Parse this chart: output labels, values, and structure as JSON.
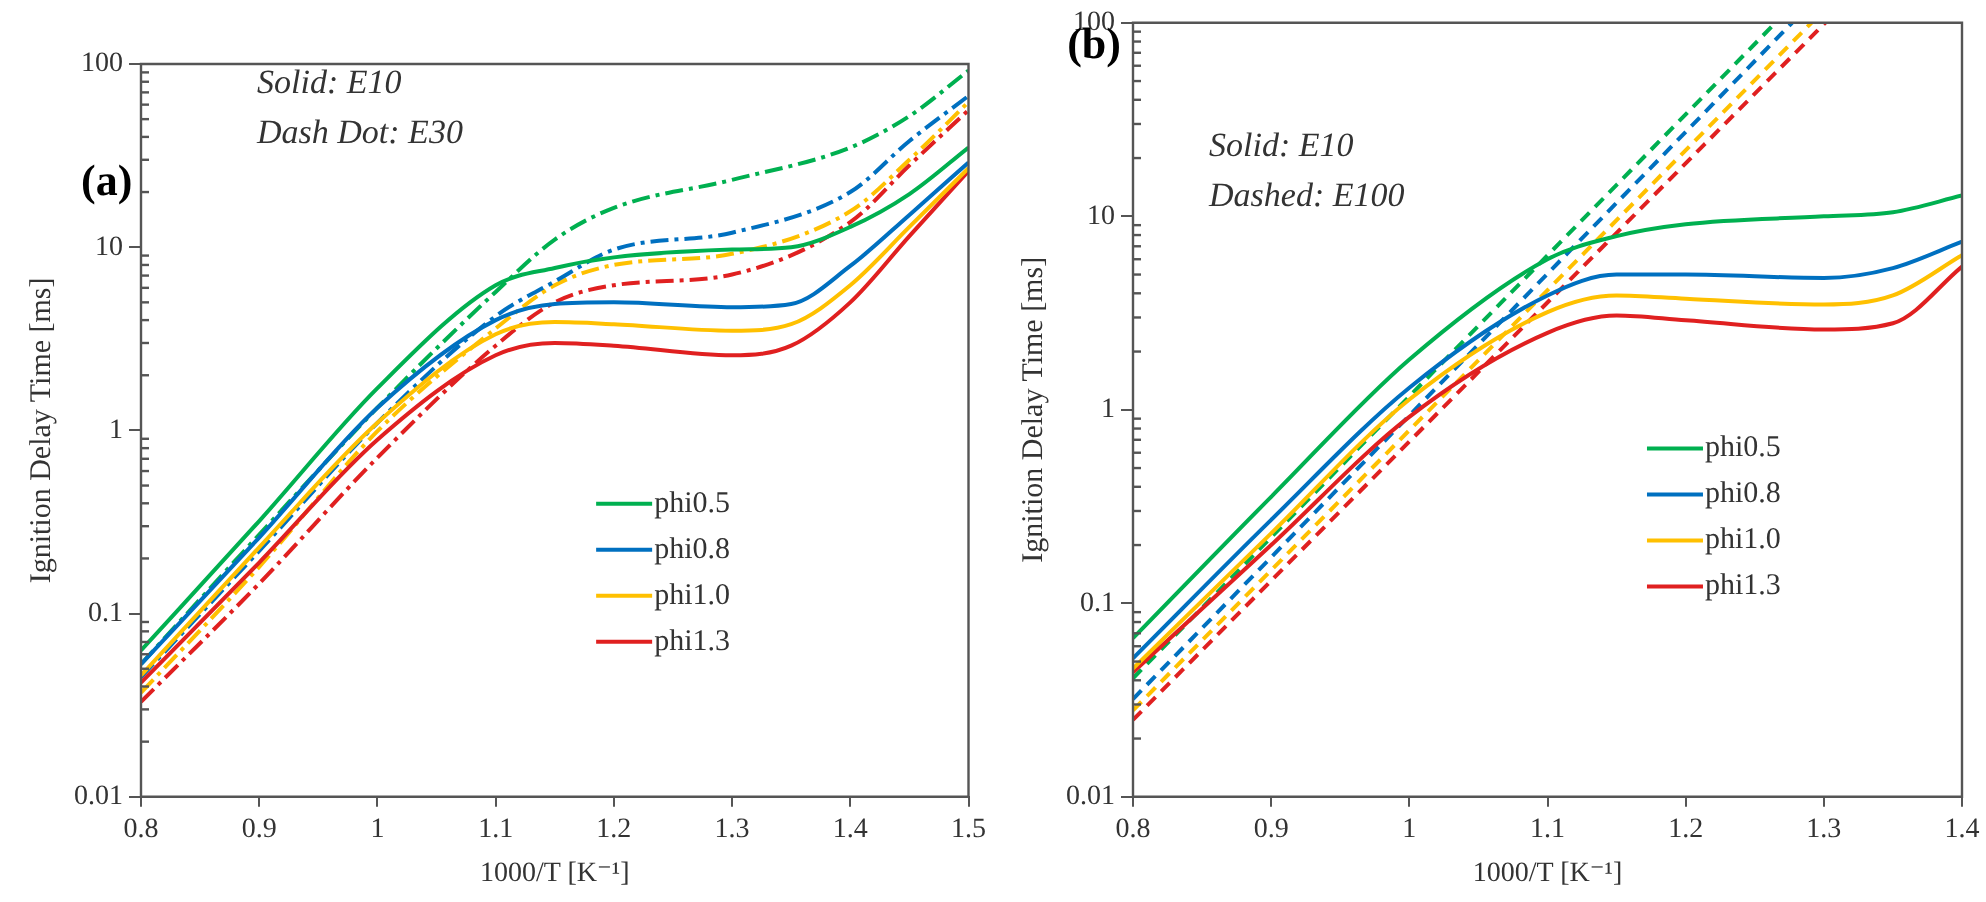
{
  "chart_data": [
    {
      "type": "line",
      "xlabel": "1000/T [K⁻¹]",
      "ylabel": "Ignition Delay Time [ms]",
      "annotations": [
        "(a)",
        "Solid: E10",
        "Dash Dot: E30"
      ],
      "log": "y",
      "xlim": [
        0.8,
        1.5
      ],
      "xticks": [
        0.8,
        0.9,
        1,
        1.1,
        1.2,
        1.3,
        1.4,
        1.5
      ],
      "ylim": [
        0.01,
        100
      ],
      "yticks": [
        0.01,
        0.1,
        1,
        10,
        100
      ],
      "grid": false,
      "legend": "center",
      "marker": "none",
      "series": [
        {
          "name": "phi0.5",
          "color": "#00b050",
          "line_style": "solid",
          "x": [
            0.8,
            0.9,
            1.0,
            1.1,
            1.15,
            1.2,
            1.3,
            1.35,
            1.4,
            1.45,
            1.5
          ],
          "values": [
            0.063,
            0.32,
            1.7,
            6.2,
            7.7,
            8.8,
            9.7,
            10,
            12.9,
            19.5,
            35
          ]
        },
        {
          "name": "phi0.8",
          "color": "#0070c0",
          "line_style": "solid",
          "x": [
            0.8,
            0.9,
            1.0,
            1.1,
            1.15,
            1.2,
            1.3,
            1.35,
            1.4,
            1.45,
            1.5
          ],
          "values": [
            0.053,
            0.26,
            1.33,
            4.0,
            4.9,
            5.0,
            4.7,
            4.9,
            7.9,
            15,
            29
          ]
        },
        {
          "name": "phi1.0",
          "color": "#ffc000",
          "line_style": "solid",
          "x": [
            0.8,
            0.9,
            1.0,
            1.1,
            1.15,
            1.2,
            1.3,
            1.35,
            1.4,
            1.45,
            1.5
          ],
          "values": [
            0.046,
            0.23,
            1.1,
            3.35,
            3.9,
            3.8,
            3.5,
            3.8,
            6.2,
            12.9,
            27
          ]
        },
        {
          "name": "phi1.3",
          "color": "#e02020",
          "line_style": "solid",
          "x": [
            0.8,
            0.9,
            1.0,
            1.1,
            1.15,
            1.2,
            1.3,
            1.35,
            1.4,
            1.45,
            1.5
          ],
          "values": [
            0.042,
            0.19,
            0.89,
            2.57,
            3.0,
            2.9,
            2.57,
            2.9,
            5.0,
            11.5,
            26
          ]
        },
        {
          "color": "#00b050",
          "line_style": "dashdot",
          "x": [
            0.8,
            0.9,
            1.0,
            1.1,
            1.15,
            1.2,
            1.3,
            1.4,
            1.45,
            1.5
          ],
          "values": [
            0.053,
            0.27,
            1.33,
            5.7,
            11,
            16.4,
            23.3,
            35,
            52,
            92
          ]
        },
        {
          "color": "#0070c0",
          "line_style": "dashdot",
          "x": [
            0.8,
            0.9,
            1.0,
            1.1,
            1.15,
            1.2,
            1.3,
            1.4,
            1.45,
            1.5
          ],
          "values": [
            0.045,
            0.22,
            1.1,
            4.2,
            6.5,
            9.7,
            12,
            20,
            38,
            67
          ]
        },
        {
          "color": "#ffc000",
          "line_style": "dashdot",
          "x": [
            0.8,
            0.9,
            1.0,
            1.1,
            1.15,
            1.2,
            1.3,
            1.4,
            1.45,
            1.5
          ],
          "values": [
            0.037,
            0.18,
            0.99,
            3.6,
            6.2,
            8,
            9.2,
            15.7,
            30,
            62
          ]
        },
        {
          "color": "#e02020",
          "line_style": "dashdot",
          "x": [
            0.8,
            0.9,
            1.0,
            1.1,
            1.15,
            1.2,
            1.3,
            1.4,
            1.45,
            1.5
          ],
          "values": [
            0.033,
            0.146,
            0.71,
            2.9,
            5.0,
            6.2,
            7.1,
            13.7,
            28,
            56
          ]
        }
      ]
    },
    {
      "type": "line",
      "xlabel": "1000/T [K⁻¹]",
      "ylabel": "Ignition Delay Time [ms]",
      "annotations": [
        "(b)",
        "Solid: E10",
        "Dashed: E100"
      ],
      "log": "y",
      "xlim": [
        0.8,
        1.4
      ],
      "xticks": [
        0.8,
        0.9,
        1,
        1.1,
        1.2,
        1.3,
        1.4
      ],
      "ylim": [
        0.01,
        100
      ],
      "yticks": [
        0.01,
        0.1,
        1,
        10,
        100
      ],
      "grid": false,
      "legend": "center right",
      "marker": "none",
      "series": [
        {
          "name": "phi0.5",
          "color": "#00b050",
          "line_style": "solid",
          "x": [
            0.8,
            0.9,
            1.0,
            1.1,
            1.15,
            1.2,
            1.3,
            1.35,
            1.4
          ],
          "values": [
            0.066,
            0.355,
            1.82,
            6.0,
            7.9,
            9.1,
            10,
            10.5,
            12.8
          ]
        },
        {
          "name": "phi0.8",
          "color": "#0070c0",
          "line_style": "solid",
          "x": [
            0.8,
            0.9,
            1.0,
            1.1,
            1.15,
            1.2,
            1.3,
            1.35,
            1.4
          ],
          "values": [
            0.052,
            0.27,
            1.3,
            3.9,
            5.0,
            5.0,
            4.8,
            5.4,
            7.4
          ]
        },
        {
          "name": "phi1.0",
          "color": "#ffc000",
          "line_style": "solid",
          "x": [
            0.8,
            0.9,
            1.0,
            1.1,
            1.15,
            1.2,
            1.3,
            1.35,
            1.4
          ],
          "values": [
            0.046,
            0.23,
            1.13,
            3.2,
            3.9,
            3.75,
            3.5,
            3.9,
            6.3
          ]
        },
        {
          "name": "phi1.3",
          "color": "#e02020",
          "line_style": "solid",
          "x": [
            0.8,
            0.9,
            1.0,
            1.1,
            1.15,
            1.2,
            1.3,
            1.35,
            1.4
          ],
          "values": [
            0.044,
            0.2,
            0.92,
            2.5,
            3.07,
            2.9,
            2.6,
            2.8,
            5.5
          ]
        },
        {
          "color": "#00b050",
          "line_style": "dashed",
          "x": [
            0.8,
            1.265
          ],
          "values": [
            0.041,
            100
          ]
        },
        {
          "color": "#0070c0",
          "line_style": "dashed",
          "x": [
            0.8,
            1.277
          ],
          "values": [
            0.032,
            100
          ]
        },
        {
          "color": "#ffc000",
          "line_style": "dashed",
          "x": [
            0.8,
            1.291
          ],
          "values": [
            0.028,
            100
          ]
        },
        {
          "color": "#e02020",
          "line_style": "dashed",
          "x": [
            0.8,
            1.301
          ],
          "values": [
            0.025,
            100
          ]
        }
      ]
    }
  ]
}
